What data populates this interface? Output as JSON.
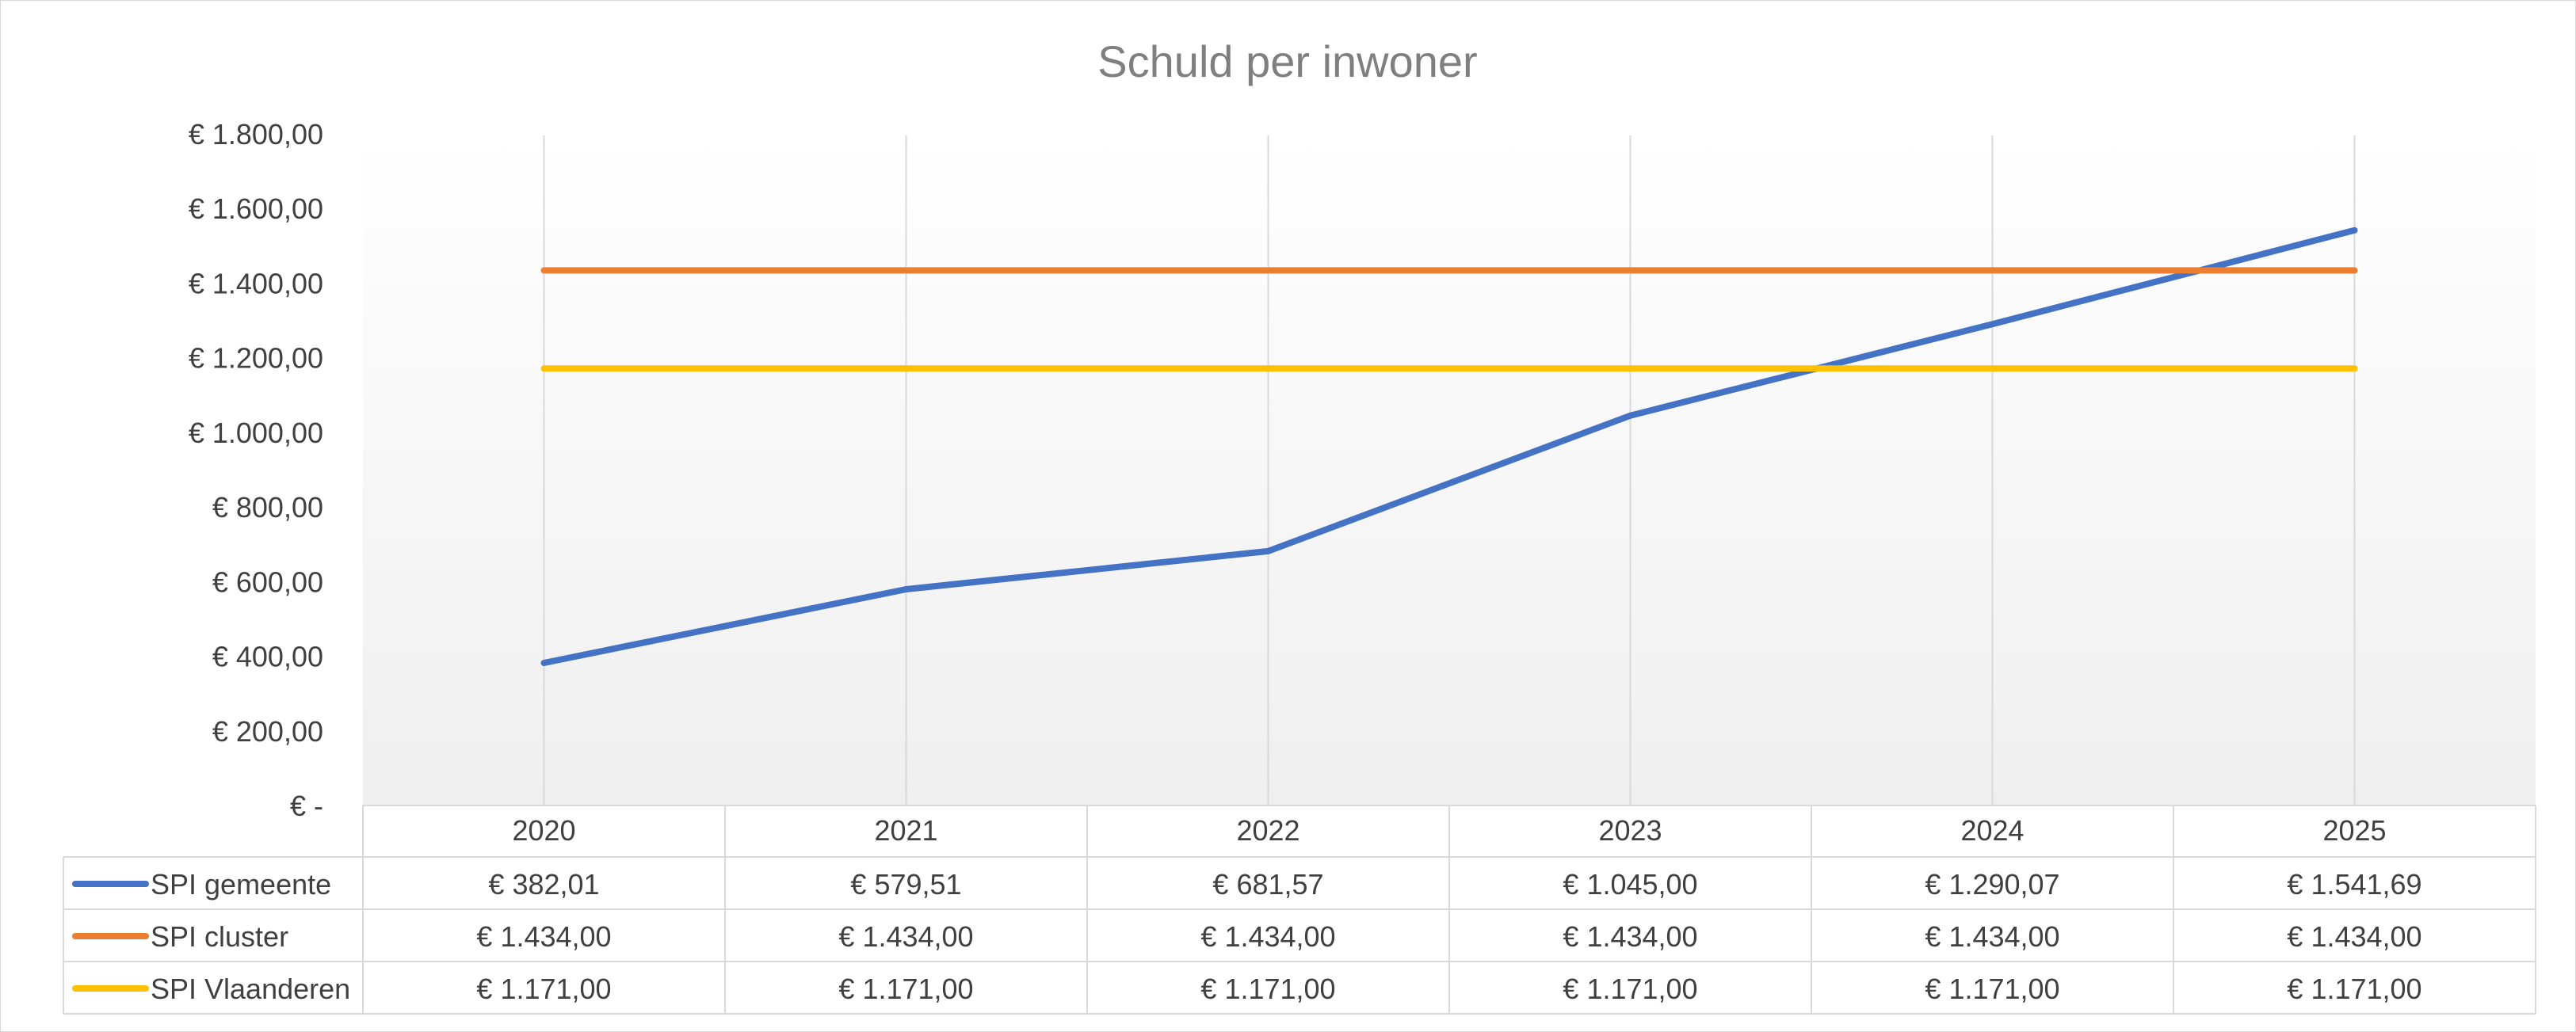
{
  "chart_data": {
    "type": "line",
    "title": "Schuld per inwoner",
    "categories": [
      "2020",
      "2021",
      "2022",
      "2023",
      "2024",
      "2025"
    ],
    "ylim": [
      0,
      1800
    ],
    "y_ticks": [
      0,
      200,
      400,
      600,
      800,
      1000,
      1200,
      1400,
      1600,
      1800
    ],
    "y_tick_labels": [
      "€ -",
      "€ 200,00",
      "€ 400,00",
      "€ 600,00",
      "€ 800,00",
      "€ 1.000,00",
      "€ 1.200,00",
      "€ 1.400,00",
      "€ 1.600,00",
      "€ 1.800,00"
    ],
    "grid": "vertical",
    "legend": "data-table",
    "series": [
      {
        "name": "SPI gemeente",
        "color": "#4472C4",
        "values": [
          382.01,
          579.51,
          681.57,
          1045.0,
          1290.07,
          1541.69
        ],
        "labels": [
          "€ 382,01",
          "€ 579,51",
          "€ 681,57",
          "€ 1.045,00",
          "€ 1.290,07",
          "€ 1.541,69"
        ]
      },
      {
        "name": "SPI cluster",
        "color": "#ED7D31",
        "values": [
          1434.0,
          1434.0,
          1434.0,
          1434.0,
          1434.0,
          1434.0
        ],
        "labels": [
          "€ 1.434,00",
          "€ 1.434,00",
          "€ 1.434,00",
          "€ 1.434,00",
          "€ 1.434,00",
          "€ 1.434,00"
        ]
      },
      {
        "name": "SPI Vlaanderen",
        "color": "#FFC000",
        "values": [
          1171.0,
          1171.0,
          1171.0,
          1171.0,
          1171.0,
          1171.0
        ],
        "labels": [
          "€ 1.171,00",
          "€ 1.171,00",
          "€ 1.171,00",
          "€ 1.171,00",
          "€ 1.171,00",
          "€ 1.171,00"
        ]
      }
    ]
  }
}
